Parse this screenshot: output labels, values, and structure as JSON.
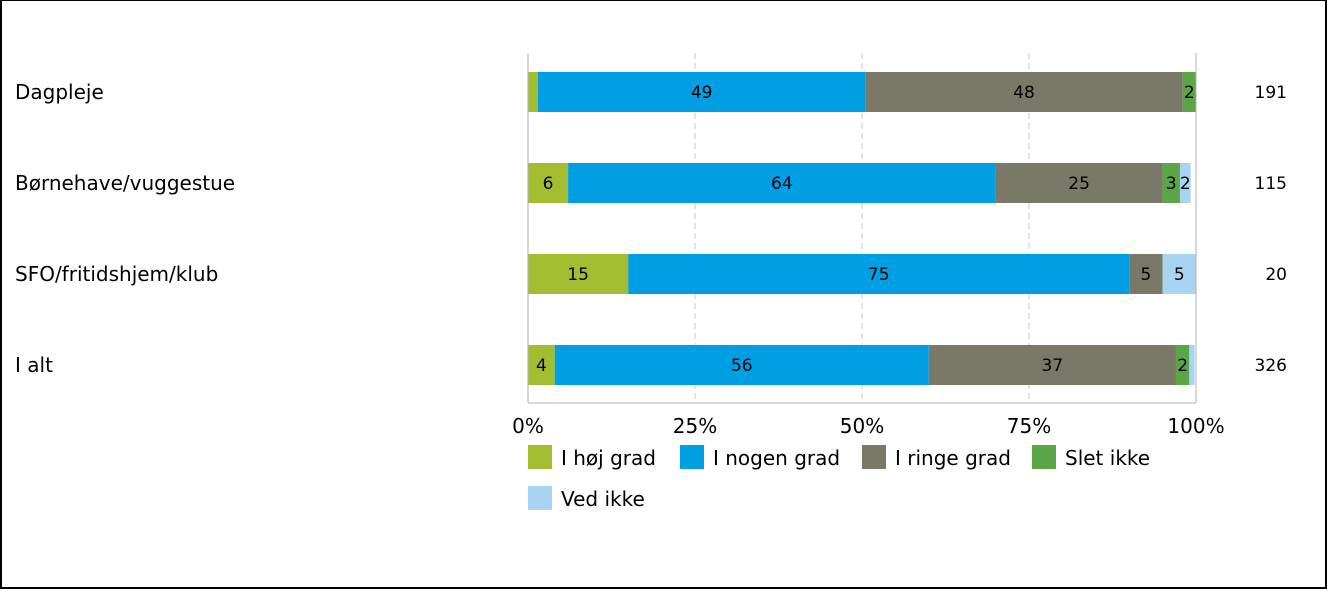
{
  "chart_data": {
    "type": "bar",
    "orientation": "horizontal",
    "stacked": true,
    "categories": [
      "Dagpleje",
      "Børnehave/vuggestue",
      "SFO/fritidshjem/klub",
      "I alt"
    ],
    "n_values": [
      "191",
      "115",
      "20",
      "326"
    ],
    "series": [
      {
        "name": "I høj grad",
        "color": "#a3bd31",
        "values": [
          1.5,
          6,
          15,
          4
        ],
        "labels": [
          "",
          "6",
          "15",
          "4"
        ]
      },
      {
        "name": "I nogen grad",
        "color": "#009fe3",
        "values": [
          49,
          64,
          75,
          56
        ],
        "labels": [
          "49",
          "64",
          "75",
          "56"
        ]
      },
      {
        "name": "I ringe grad",
        "color": "#7a7866",
        "values": [
          47.5,
          25,
          5,
          37
        ],
        "labels": [
          "48",
          "25",
          "5",
          "37"
        ]
      },
      {
        "name": "Slet ikke",
        "color": "#5ba547",
        "values": [
          2,
          2.6,
          0,
          2
        ],
        "labels": [
          "2",
          "3",
          "",
          "2"
        ]
      },
      {
        "name": "Ved ikke",
        "color": "#a8d3f1",
        "values": [
          0,
          1.6,
          5,
          0.8
        ],
        "labels": [
          "",
          "2",
          "5",
          ""
        ]
      }
    ],
    "x_ticks": [
      "0%",
      "25%",
      "50%",
      "75%",
      "100%"
    ],
    "xlim": [
      0,
      100
    ],
    "grid": "vertical dashed",
    "legend": "bottom"
  }
}
